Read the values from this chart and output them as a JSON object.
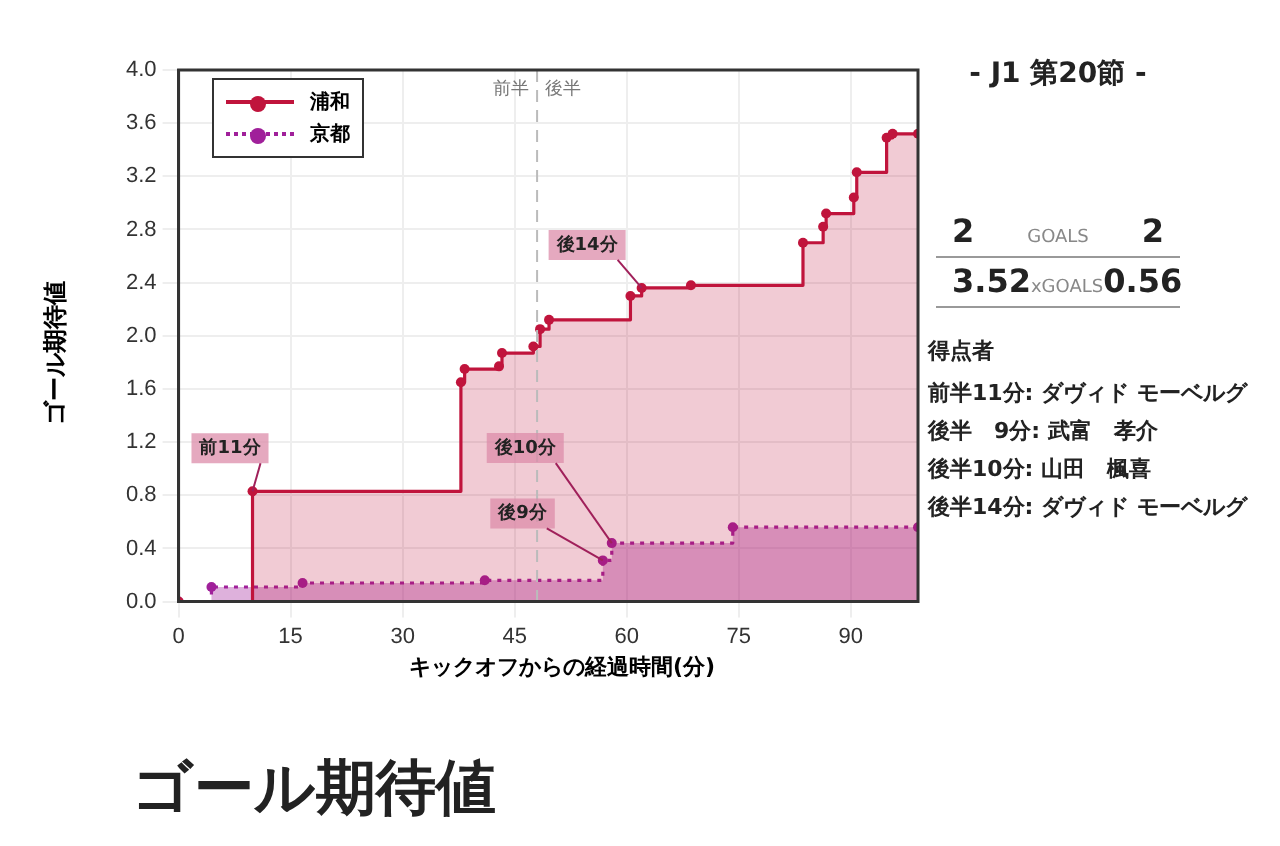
{
  "chart_data": {
    "type": "step",
    "title": "ゴール期待値",
    "xlabel": "キックオフからの経過時間(分)",
    "ylabel": "ゴール期待値",
    "xlim": [
      0,
      99
    ],
    "xticks": [
      0,
      15,
      30,
      45,
      60,
      75,
      90
    ],
    "ylim": [
      0,
      4
    ],
    "yticks": [
      {
        "value": 0,
        "label": "0.0"
      },
      {
        "value": 0.4,
        "label": "0.4"
      },
      {
        "value": 0.8,
        "label": "0.8"
      },
      {
        "value": 1.2,
        "label": "1.2"
      },
      {
        "value": 1.6,
        "label": "1.6"
      },
      {
        "value": 2,
        "label": "2.0"
      },
      {
        "value": 2.4,
        "label": "2.4"
      },
      {
        "value": 2.8,
        "label": "2.8"
      },
      {
        "value": 3.2,
        "label": "3.2"
      },
      {
        "value": 3.6,
        "label": "3.6"
      },
      {
        "value": 4,
        "label": "4.0"
      }
    ],
    "grid": true,
    "legend": "top left",
    "marker": "circle",
    "series": [
      {
        "name": "浦和",
        "color": "#c0143c",
        "line_style": "solid",
        "x": [
          0,
          9.9,
          37.8,
          38.3,
          42.9,
          43.3,
          47.5,
          48.4,
          49.6,
          60.5,
          62,
          68.6,
          83.6,
          86.3,
          86.7,
          90.4,
          90.8,
          94.8,
          95.6,
          99
        ],
        "values": [
          0,
          0.83,
          1.65,
          1.75,
          1.77,
          1.87,
          1.92,
          2.05,
          2.12,
          2.3,
          2.36,
          2.38,
          2.7,
          2.82,
          2.92,
          3.04,
          3.23,
          3.49,
          3.52,
          3.52
        ]
      },
      {
        "name": "京都",
        "color": "#a0209a",
        "line_style": "dotted",
        "x": [
          0,
          4.4,
          16.6,
          41,
          56.8,
          58,
          74.2,
          99
        ],
        "values": [
          0,
          0.11,
          0.14,
          0.16,
          0.31,
          0.44,
          0.56,
          0.56
        ]
      }
    ],
    "ref_lines": [
      {
        "axis": "x",
        "value": 48,
        "color": "#bbbbbb",
        "line_style": "dashed"
      }
    ],
    "annotations": [
      {
        "text": "前11分",
        "x": 9.9,
        "y": 0.83
      },
      {
        "text": "後14分",
        "x": 62,
        "y": 2.36
      },
      {
        "text": "後10分",
        "x": 58,
        "y": 0.44
      },
      {
        "text": "後9分",
        "x": 56.8,
        "y": 0.31
      },
      "前半",
      "後半",
      "- J1 第20節 -",
      "2",
      "GOALS",
      "2",
      "3.52",
      "xGOALS",
      "0.56",
      "得点者",
      "前半11分: ダヴィド モーベルグ",
      "後半　9分: 武富　孝介",
      "後半10分: 山田　楓喜",
      "後半14分: ダヴィド モーベルグ"
    ]
  }
}
